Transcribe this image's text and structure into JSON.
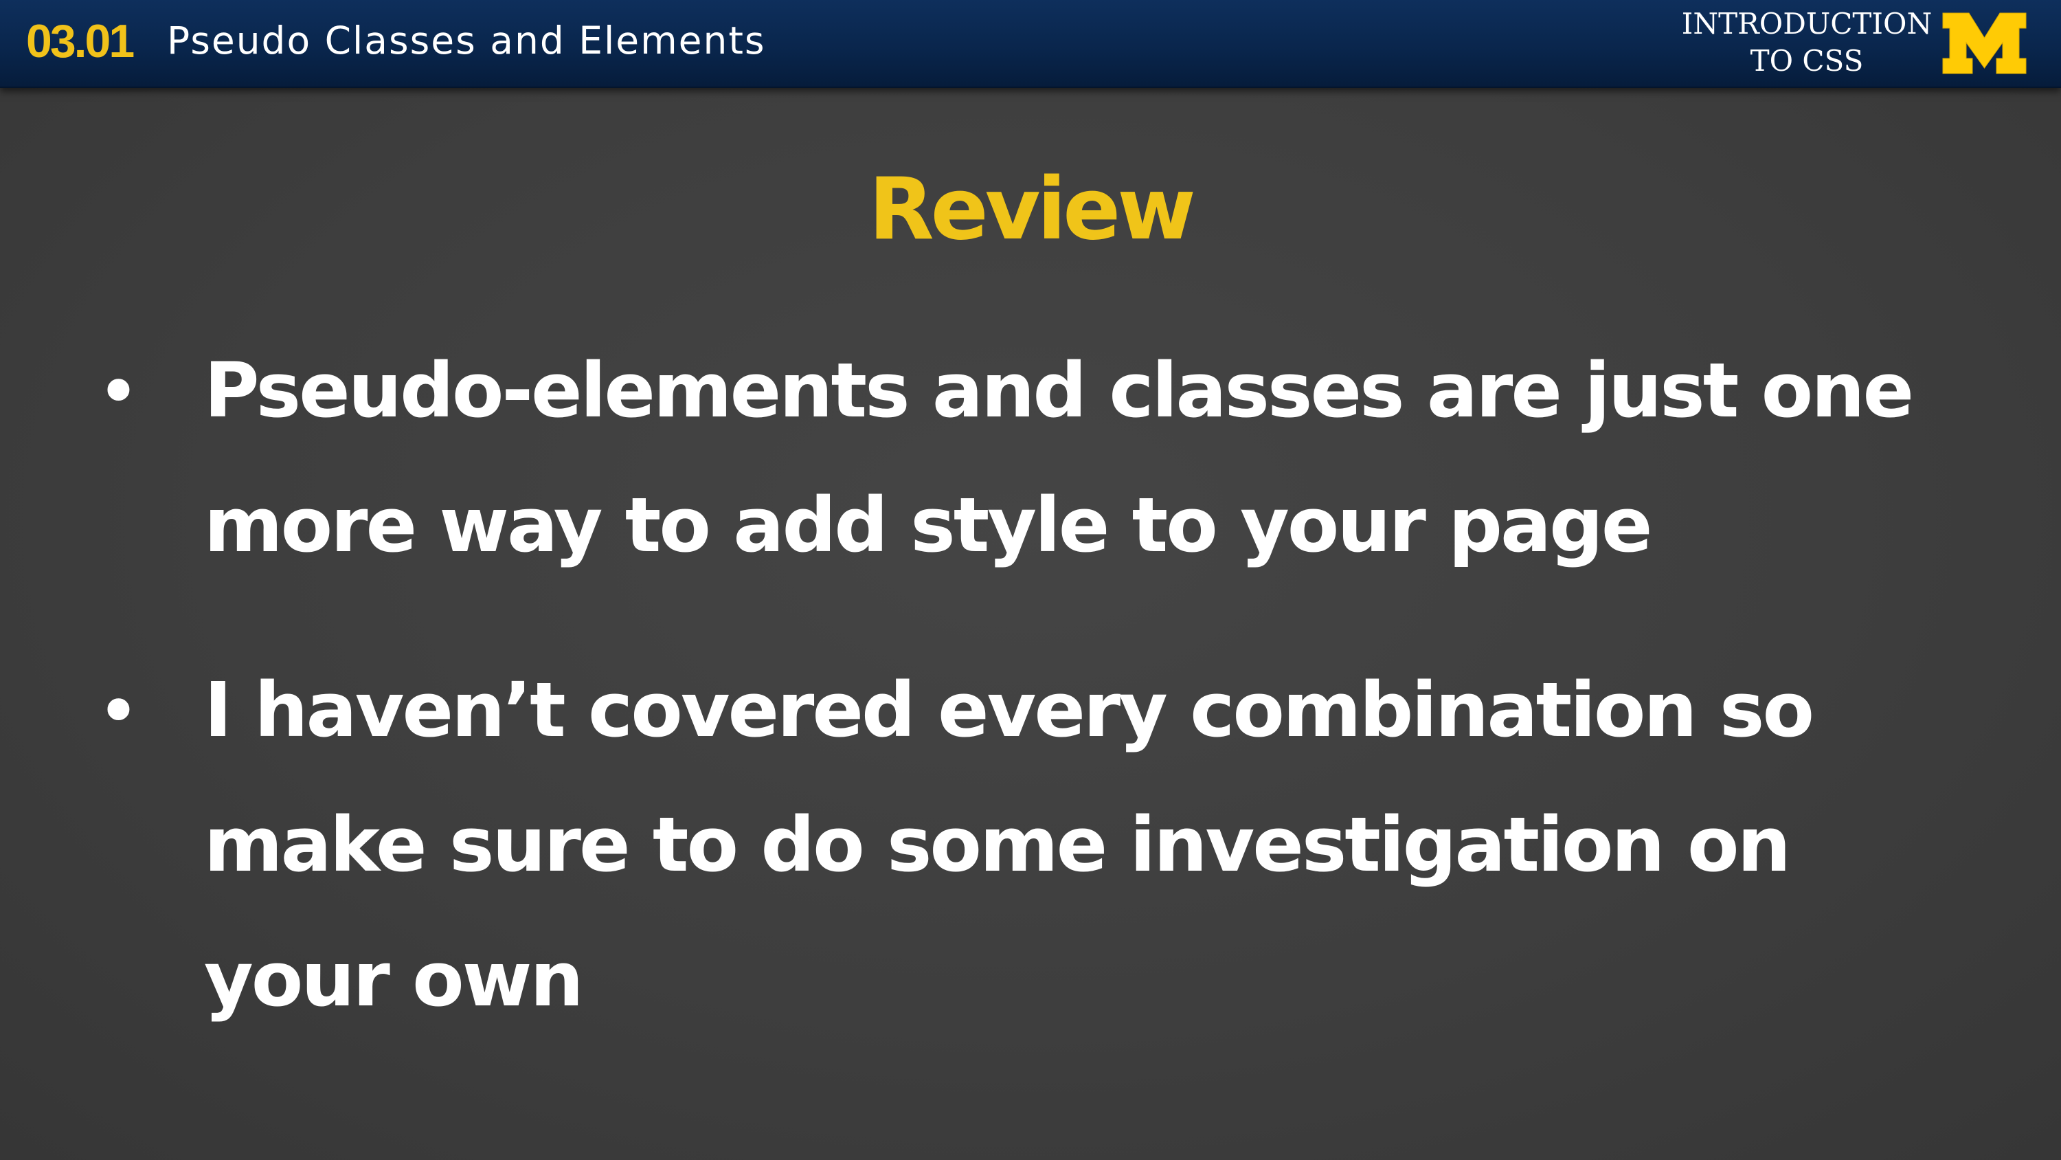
{
  "header": {
    "lesson_number": "03.01",
    "lesson_title": "Pseudo Classes and Elements",
    "course_title": "INTRODUCTION\nTO CSS",
    "logo_icon": "block-m-logo-icon",
    "background_color": "#09254b",
    "accent_color": "#f1c21a"
  },
  "slide": {
    "title": "Review",
    "title_color": "#f0c419",
    "background_color": "#3d3d3d",
    "bullets": [
      {
        "text": "Pseudo-elements and classes are just one more way to add style to your page"
      },
      {
        "text": "I haven’t covered every combination so make sure to do some investigation on your own"
      }
    ]
  }
}
